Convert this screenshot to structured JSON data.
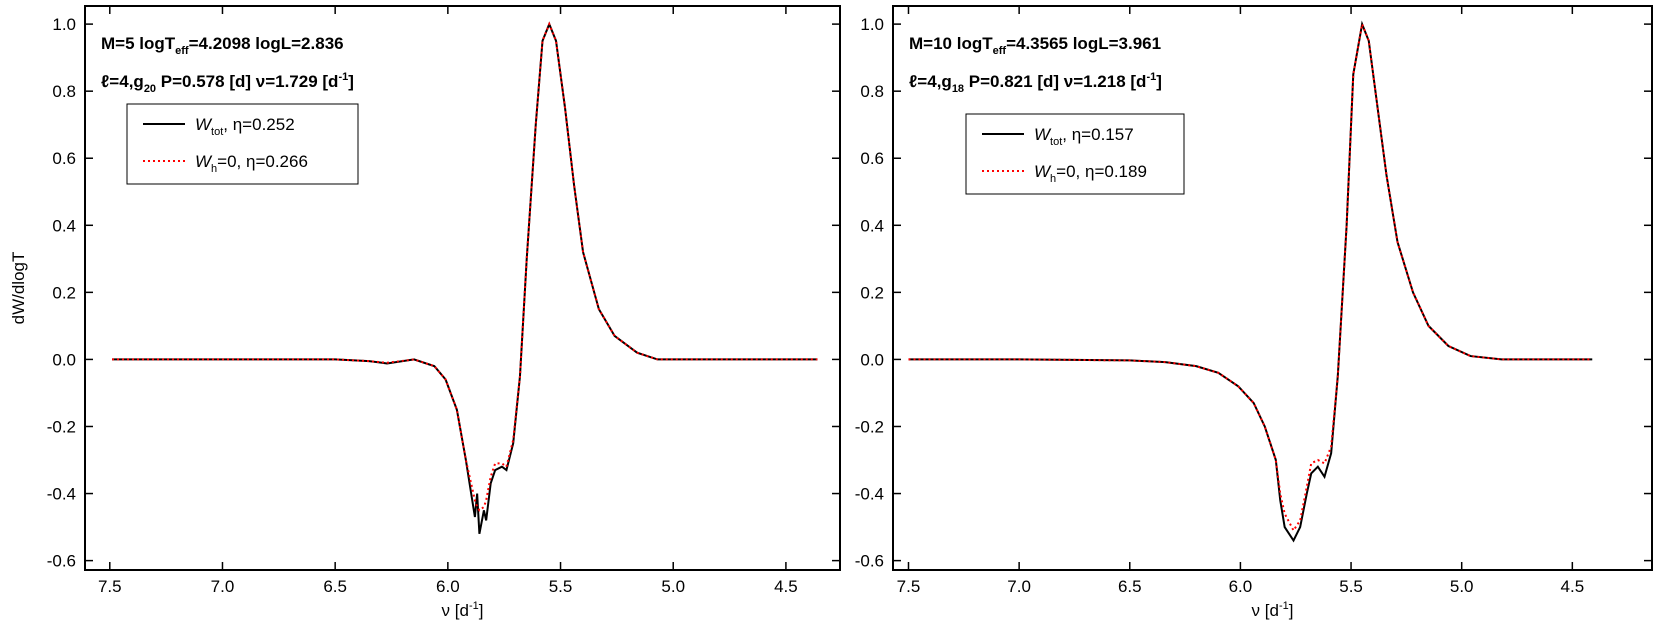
{
  "chart_data": [
    {
      "type": "line",
      "annotations": [
        {
          "parts": [
            {
              "text": "M=5  logT"
            },
            {
              "text": "eff",
              "sub": true
            },
            {
              "text": "=4.2098   logL=2.836"
            }
          ]
        },
        {
          "parts": [
            {
              "text": "ℓ=4,g"
            },
            {
              "text": "20",
              "sub": true
            },
            {
              "text": "  P=0.578 [d]  ν=1.729 [d"
            },
            {
              "text": "-1",
              "sup": true
            },
            {
              "text": "]"
            }
          ]
        }
      ],
      "ylabel": "dW/dlogT",
      "xlabel": [
        {
          "text": "ν [d"
        },
        {
          "text": "-1",
          "sup": true
        },
        {
          "text": "]"
        }
      ],
      "x": [
        7.49,
        7.0,
        6.5,
        6.35,
        6.27,
        6.15,
        6.06,
        6.01,
        5.96,
        5.92,
        5.88,
        5.87,
        5.86,
        5.84,
        5.83,
        5.81,
        5.79,
        5.76,
        5.74,
        5.71,
        5.68,
        5.65,
        5.61,
        5.58,
        5.55,
        5.52,
        5.48,
        5.44,
        5.4,
        5.33,
        5.26,
        5.16,
        5.07,
        4.9,
        4.36
      ],
      "series": [
        {
          "name": [
            {
              "text": "W"
            },
            {
              "text": "tot",
              "sub": true
            },
            {
              "text": ", η=0.252"
            }
          ],
          "color": "#000000",
          "dash": "solid",
          "values": [
            0,
            0,
            0,
            -0.005,
            -0.012,
            0,
            -0.02,
            -0.06,
            -0.15,
            -0.3,
            -0.47,
            -0.4,
            -0.52,
            -0.45,
            -0.48,
            -0.37,
            -0.33,
            -0.32,
            -0.33,
            -0.25,
            -0.05,
            0.3,
            0.7,
            0.95,
            1.0,
            0.95,
            0.75,
            0.52,
            0.32,
            0.15,
            0.07,
            0.02,
            0.0,
            0,
            0
          ]
        },
        {
          "name": [
            {
              "text": "W"
            },
            {
              "text": "h",
              "sub": true
            },
            {
              "text": "=0, η=0.266"
            }
          ],
          "color": "#ff0000",
          "dash": "dotted",
          "values": [
            0,
            0,
            0,
            -0.005,
            -0.01,
            0,
            -0.02,
            -0.06,
            -0.15,
            -0.3,
            -0.42,
            -0.44,
            -0.45,
            -0.44,
            -0.42,
            -0.35,
            -0.31,
            -0.31,
            -0.32,
            -0.24,
            -0.05,
            0.3,
            0.7,
            0.95,
            1.0,
            0.95,
            0.75,
            0.52,
            0.32,
            0.15,
            0.07,
            0.02,
            0.0,
            0,
            0
          ]
        }
      ],
      "xlim": [
        7.61,
        4.26
      ],
      "ylim": [
        -0.628,
        1.054
      ],
      "xticks": [
        7.5,
        {
          "value": 7.0,
          "label": "7.0"
        },
        6.5,
        {
          "value": 6.0,
          "label": "6.0"
        },
        5.5,
        {
          "value": 5.0,
          "label": "5.0"
        },
        4.5
      ],
      "yticks": [
        {
          "value": 1.0,
          "label": "1.0"
        },
        0.8,
        0.6,
        0.4,
        0.2,
        {
          "value": 0.0,
          "label": "0.0"
        },
        -0.2,
        -0.4,
        -0.6
      ],
      "legend": "upper left"
    },
    {
      "type": "line",
      "annotations": [
        {
          "parts": [
            {
              "text": "M=10  logT"
            },
            {
              "text": "eff",
              "sub": true
            },
            {
              "text": "=4.3565   logL=3.961"
            }
          ]
        },
        {
          "parts": [
            {
              "text": "ℓ=4,g"
            },
            {
              "text": "18",
              "sub": true
            },
            {
              "text": "  P=0.821 [d]  ν=1.218 [d"
            },
            {
              "text": "-1",
              "sup": true
            },
            {
              "text": "]"
            }
          ]
        }
      ],
      "xlabel": [
        {
          "text": "ν [d"
        },
        {
          "text": "-1",
          "sup": true
        },
        {
          "text": "]"
        }
      ],
      "x": [
        7.5,
        7.0,
        6.5,
        6.34,
        6.2,
        6.1,
        6.01,
        5.94,
        5.89,
        5.84,
        5.82,
        5.8,
        5.76,
        5.73,
        5.7,
        5.68,
        5.65,
        5.62,
        5.59,
        5.56,
        5.52,
        5.49,
        5.45,
        5.42,
        5.39,
        5.34,
        5.29,
        5.22,
        5.15,
        5.06,
        4.96,
        4.82,
        4.41
      ],
      "series": [
        {
          "name": [
            {
              "text": "W"
            },
            {
              "text": "tot",
              "sub": true
            },
            {
              "text": ", η=0.157"
            }
          ],
          "color": "#000000",
          "dash": "solid",
          "values": [
            0,
            0,
            -0.003,
            -0.008,
            -0.02,
            -0.04,
            -0.08,
            -0.13,
            -0.2,
            -0.3,
            -0.42,
            -0.5,
            -0.54,
            -0.5,
            -0.4,
            -0.34,
            -0.32,
            -0.35,
            -0.28,
            -0.05,
            0.4,
            0.85,
            1.0,
            0.95,
            0.8,
            0.55,
            0.35,
            0.2,
            0.1,
            0.04,
            0.01,
            0,
            0
          ]
        },
        {
          "name": [
            {
              "text": "W"
            },
            {
              "text": "h",
              "sub": true
            },
            {
              "text": "=0, η=0.189"
            }
          ],
          "color": "#ff0000",
          "dash": "dotted",
          "values": [
            0,
            0,
            -0.003,
            -0.008,
            -0.02,
            -0.04,
            -0.08,
            -0.13,
            -0.2,
            -0.3,
            -0.4,
            -0.46,
            -0.51,
            -0.48,
            -0.38,
            -0.31,
            -0.3,
            -0.31,
            -0.26,
            -0.05,
            0.4,
            0.85,
            1.0,
            0.95,
            0.8,
            0.55,
            0.35,
            0.2,
            0.1,
            0.04,
            0.01,
            0,
            0
          ]
        }
      ],
      "xlim": [
        7.57,
        4.14
      ],
      "ylim": [
        -0.628,
        1.054
      ],
      "xticks": [
        7.5,
        {
          "value": 7.0,
          "label": "7.0"
        },
        6.5,
        {
          "value": 6.0,
          "label": "6.0"
        },
        5.5,
        {
          "value": 5.0,
          "label": "5.0"
        },
        4.5
      ],
      "yticks": [
        {
          "value": 1.0,
          "label": "1.0"
        },
        0.8,
        0.6,
        0.4,
        0.2,
        {
          "value": 0.0,
          "label": "0.0"
        },
        -0.2,
        -0.4,
        -0.6
      ],
      "legend": "upper left"
    }
  ]
}
